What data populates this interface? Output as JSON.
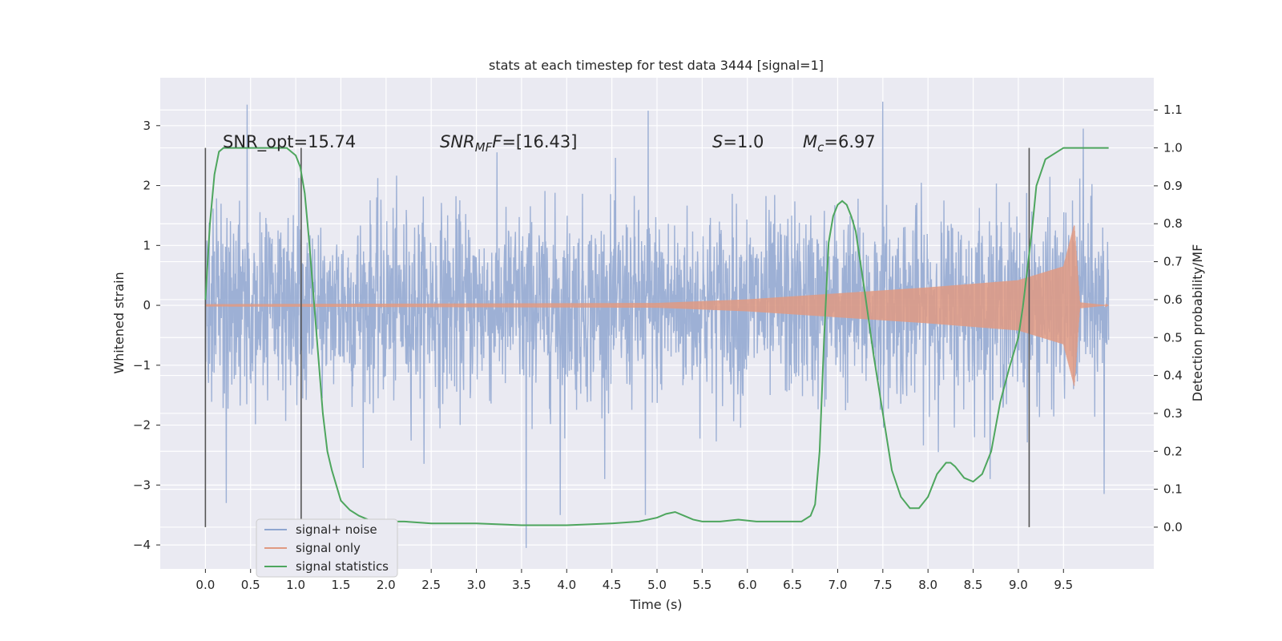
{
  "chart_data": {
    "type": "line",
    "title": "stats at each timestep for test data 3444 [signal=1]",
    "xlabel": "Time (s)",
    "ylabel": "Whitened strain",
    "y2label": "Detection probability/MF",
    "xlim": [
      -0.5,
      10.5
    ],
    "ylim": [
      -4.4,
      3.8
    ],
    "y2lim": [
      -0.11,
      1.185
    ],
    "xticks": [
      "0.0",
      "0.5",
      "1.0",
      "1.5",
      "2.0",
      "2.5",
      "3.0",
      "3.5",
      "4.0",
      "4.5",
      "5.0",
      "5.5",
      "6.0",
      "6.5",
      "7.0",
      "7.5",
      "8.0",
      "8.5",
      "9.0",
      "9.5"
    ],
    "yticks": [
      "3",
      "2",
      "1",
      "0",
      "−1",
      "−2",
      "−3",
      "−4"
    ],
    "y2ticks": [
      "1.1",
      "1.0",
      "0.9",
      "0.8",
      "0.7",
      "0.6",
      "0.5",
      "0.4",
      "0.3",
      "0.2",
      "0.1",
      "0.0"
    ],
    "grid": true,
    "legend_position": "bottom-left",
    "annotations": {
      "snr_opt": "SNR_opt=15.74",
      "snr_mf_base": "SNR",
      "snr_mf_sub": "MF",
      "snr_mf_value": "=[16.43]",
      "s_sym": "S",
      "s_value": "=1.0",
      "mc_sym": "M",
      "mc_sub": "c",
      "mc_value": "=6.97"
    },
    "vertical_markers": [
      0.0,
      1.06,
      9.12
    ],
    "series": [
      {
        "name": "signal+ noise",
        "color": "#8fa6d0",
        "description_type": "noise",
        "t_start": 0.0,
        "t_end": 10.0,
        "typical_range": [
          -1.6,
          1.6
        ],
        "extremes": [
          {
            "t": 0.23,
            "v": -3.3
          },
          {
            "t": 0.46,
            "v": 3.35
          },
          {
            "t": 3.55,
            "v": -4.05
          },
          {
            "t": 3.93,
            "v": -3.5
          },
          {
            "t": 4.87,
            "v": -3.5
          },
          {
            "t": 4.9,
            "v": 3.25
          },
          {
            "t": 7.5,
            "v": 3.4
          },
          {
            "t": 9.72,
            "v": 2.95
          },
          {
            "t": 9.95,
            "v": -3.15
          }
        ]
      },
      {
        "name": "signal only",
        "color": "#e09a82",
        "description_type": "chirp",
        "t_start": 0.0,
        "t_merge": 9.65,
        "t_end": 10.0,
        "envelope": [
          {
            "t": 0.0,
            "a": 0.02
          },
          {
            "t": 5.0,
            "a": 0.04
          },
          {
            "t": 6.0,
            "a": 0.1
          },
          {
            "t": 7.0,
            "a": 0.2
          },
          {
            "t": 8.0,
            "a": 0.3
          },
          {
            "t": 9.0,
            "a": 0.42
          },
          {
            "t": 9.5,
            "a": 0.65
          },
          {
            "t": 9.62,
            "a": 1.35
          },
          {
            "t": 9.68,
            "a": 0.05
          },
          {
            "t": 10.0,
            "a": 0.0
          }
        ]
      },
      {
        "name": "signal statistics",
        "color": "#4ea65e",
        "axis": "right",
        "x": [
          0.0,
          0.05,
          0.1,
          0.15,
          0.2,
          0.3,
          0.5,
          0.7,
          0.9,
          1.0,
          1.05,
          1.1,
          1.15,
          1.2,
          1.25,
          1.3,
          1.35,
          1.4,
          1.5,
          1.6,
          1.7,
          1.8,
          1.9,
          2.0,
          2.2,
          2.5,
          3.0,
          3.5,
          4.0,
          4.5,
          4.8,
          5.0,
          5.1,
          5.2,
          5.3,
          5.4,
          5.5,
          5.7,
          5.9,
          6.1,
          6.3,
          6.6,
          6.7,
          6.75,
          6.8,
          6.85,
          6.9,
          6.95,
          7.0,
          7.05,
          7.1,
          7.15,
          7.2,
          7.3,
          7.4,
          7.5,
          7.6,
          7.7,
          7.8,
          7.9,
          8.0,
          8.1,
          8.2,
          8.25,
          8.3,
          8.4,
          8.5,
          8.6,
          8.7,
          8.8,
          8.9,
          9.0,
          9.05,
          9.1,
          9.15,
          9.2,
          9.3,
          9.5,
          9.7,
          10.0
        ],
        "y": [
          0.6,
          0.8,
          0.93,
          0.99,
          1.0,
          1.0,
          1.0,
          1.0,
          1.0,
          0.98,
          0.95,
          0.88,
          0.75,
          0.6,
          0.45,
          0.3,
          0.2,
          0.15,
          0.07,
          0.045,
          0.03,
          0.02,
          0.015,
          0.015,
          0.015,
          0.01,
          0.01,
          0.005,
          0.005,
          0.01,
          0.015,
          0.025,
          0.035,
          0.04,
          0.03,
          0.02,
          0.015,
          0.015,
          0.02,
          0.015,
          0.015,
          0.015,
          0.03,
          0.06,
          0.2,
          0.5,
          0.75,
          0.82,
          0.85,
          0.86,
          0.85,
          0.82,
          0.78,
          0.62,
          0.45,
          0.3,
          0.15,
          0.08,
          0.05,
          0.05,
          0.08,
          0.14,
          0.17,
          0.17,
          0.16,
          0.13,
          0.12,
          0.14,
          0.2,
          0.33,
          0.42,
          0.5,
          0.58,
          0.68,
          0.78,
          0.9,
          0.97,
          1.0,
          1.0,
          1.0
        ]
      }
    ]
  }
}
